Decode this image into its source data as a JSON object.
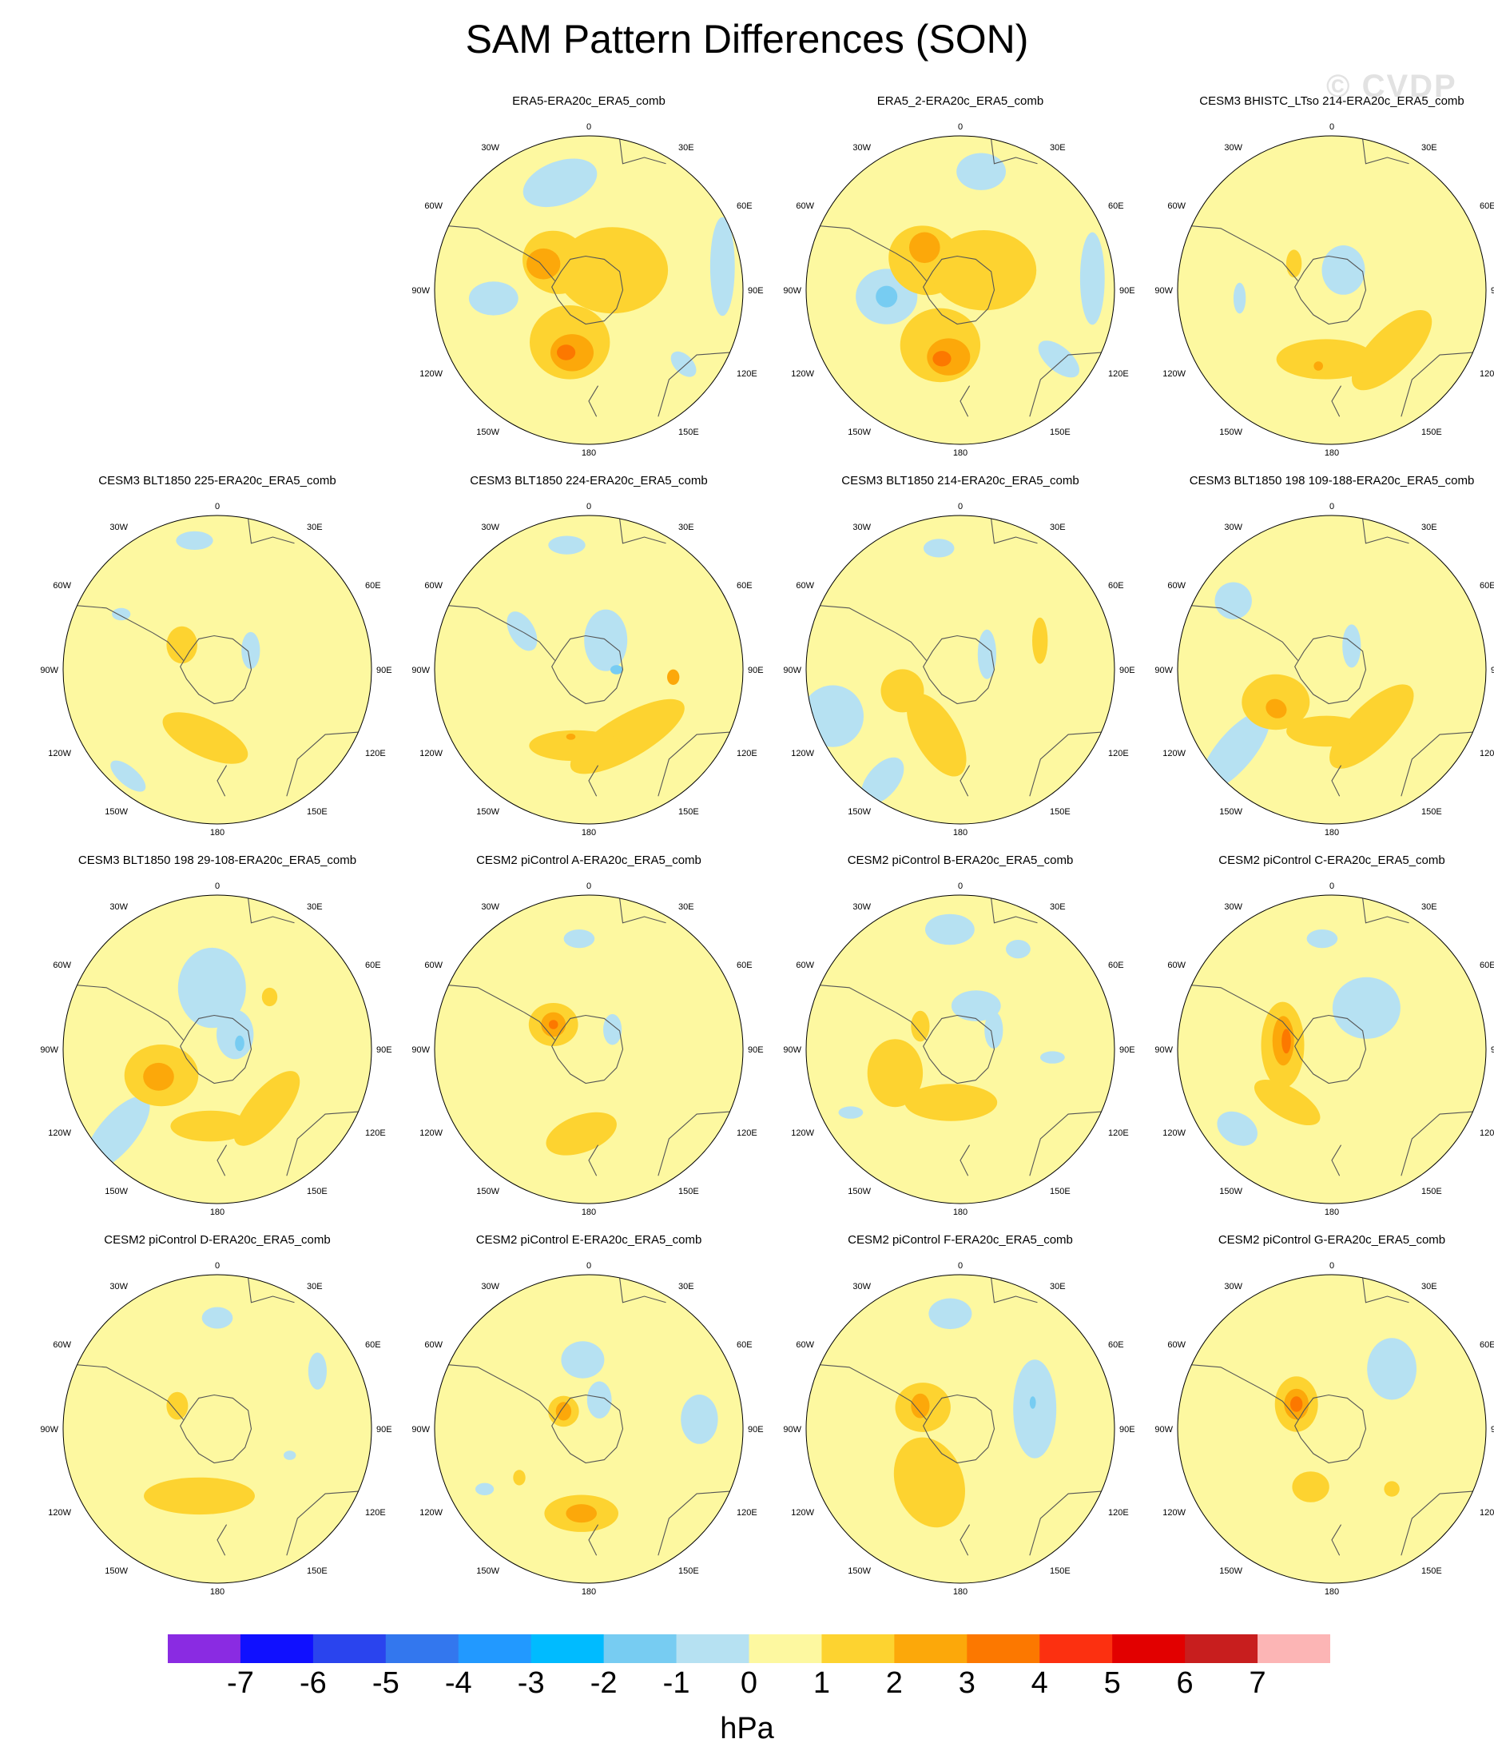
{
  "title": "SAM Pattern Differences (SON)",
  "watermark": "© CVDP",
  "units": "hPa",
  "colorbar": {
    "colors": [
      "#8a2be2",
      "#1010ff",
      "#2a44ee",
      "#3377ee",
      "#2299ff",
      "#00bbff",
      "#77ccf2",
      "#b6e1f2",
      "#fdf8a0",
      "#fdd330",
      "#fca80a",
      "#fc7800",
      "#fc3010",
      "#e20000",
      "#c81e1e",
      "#fcb5b5"
    ],
    "labels": [
      "-7",
      "-6",
      "-5",
      "-4",
      "-3",
      "-2",
      "-1",
      "0",
      "1",
      "2",
      "3",
      "4",
      "5",
      "6",
      "7"
    ]
  },
  "map_labels": {
    "top": "0",
    "ne30": "30E",
    "nw30": "30W",
    "e60": "60E",
    "w60": "60W",
    "e90": "90E",
    "w90": "90W",
    "e120": "120E",
    "w120": "120W",
    "e150": "150E",
    "w150": "150W",
    "bottom": "180"
  },
  "panels": [
    {
      "title": "",
      "empty": true,
      "blobs": []
    },
    {
      "title": "ERA5-ERA20c_ERA5_comb",
      "blobs": [
        {
          "level": "neg1",
          "ang": -15,
          "r": 0.72,
          "sx": 0.25,
          "sy": 0.14,
          "rot": -20
        },
        {
          "level": "neg1",
          "ang": -95,
          "r": 0.62,
          "sx": 0.16,
          "sy": 0.11,
          "rot": 0
        },
        {
          "level": "neg1",
          "ang": 80,
          "r": 0.88,
          "sx": 0.08,
          "sy": 0.32,
          "rot": 0
        },
        {
          "level": "neg1",
          "ang": 128,
          "r": 0.78,
          "sx": 0.1,
          "sy": 0.06,
          "rot": 45
        },
        {
          "level": "pos1",
          "ang": -50,
          "r": 0.28,
          "sx": 0.22,
          "sy": 0.2,
          "rot": 30
        },
        {
          "level": "pos1",
          "ang": -160,
          "r": 0.36,
          "sx": 0.26,
          "sy": 0.24,
          "rot": 0
        },
        {
          "level": "pos1",
          "ang": 50,
          "r": 0.2,
          "sx": 0.36,
          "sy": 0.28,
          "rot": 0
        },
        {
          "level": "pos2",
          "ang": -60,
          "r": 0.34,
          "sx": 0.11,
          "sy": 0.1,
          "rot": 0
        },
        {
          "level": "pos2",
          "ang": -165,
          "r": 0.42,
          "sx": 0.14,
          "sy": 0.12,
          "rot": 0
        },
        {
          "level": "pos3",
          "ang": -160,
          "r": 0.43,
          "sx": 0.06,
          "sy": 0.05,
          "rot": 0
        }
      ]
    },
    {
      "title": "ERA5_2-ERA20c_ERA5_comb",
      "blobs": [
        {
          "level": "neg1",
          "ang": 10,
          "r": 0.78,
          "sx": 0.16,
          "sy": 0.12,
          "rot": 0
        },
        {
          "level": "neg1",
          "ang": -95,
          "r": 0.48,
          "sx": 0.2,
          "sy": 0.18,
          "rot": 0
        },
        {
          "level": "neg1",
          "ang": 85,
          "r": 0.86,
          "sx": 0.08,
          "sy": 0.3,
          "rot": 0
        },
        {
          "level": "neg1",
          "ang": 125,
          "r": 0.78,
          "sx": 0.16,
          "sy": 0.08,
          "rot": 40
        },
        {
          "level": "neg2",
          "ang": -95,
          "r": 0.48,
          "sx": 0.07,
          "sy": 0.07,
          "rot": 0
        },
        {
          "level": "pos1",
          "ang": -50,
          "r": 0.3,
          "sx": 0.24,
          "sy": 0.22,
          "rot": 30
        },
        {
          "level": "pos1",
          "ang": -160,
          "r": 0.38,
          "sx": 0.26,
          "sy": 0.24,
          "rot": 0
        },
        {
          "level": "pos1",
          "ang": 50,
          "r": 0.2,
          "sx": 0.34,
          "sy": 0.26,
          "rot": 0
        },
        {
          "level": "pos2",
          "ang": -40,
          "r": 0.36,
          "sx": 0.1,
          "sy": 0.1,
          "rot": 0
        },
        {
          "level": "pos2",
          "ang": -170,
          "r": 0.44,
          "sx": 0.14,
          "sy": 0.12,
          "rot": 0
        },
        {
          "level": "pos3",
          "ang": -165,
          "r": 0.46,
          "sx": 0.06,
          "sy": 0.05,
          "rot": 0
        }
      ]
    },
    {
      "title": "CESM3 BHISTC_LTso 214-ERA20c_ERA5_comb",
      "blobs": [
        {
          "level": "neg1",
          "ang": 30,
          "r": 0.15,
          "sx": 0.14,
          "sy": 0.16,
          "rot": 0
        },
        {
          "level": "neg1",
          "ang": -95,
          "r": 0.6,
          "sx": 0.04,
          "sy": 0.1,
          "rot": 0
        },
        {
          "level": "pos1",
          "ang": 135,
          "r": 0.55,
          "sx": 0.34,
          "sy": 0.14,
          "rot": -45
        },
        {
          "level": "pos1",
          "ang": -175,
          "r": 0.45,
          "sx": 0.32,
          "sy": 0.13,
          "rot": 0
        },
        {
          "level": "pos1",
          "ang": -55,
          "r": 0.3,
          "sx": 0.05,
          "sy": 0.09,
          "rot": 0
        },
        {
          "level": "pos2",
          "ang": -170,
          "r": 0.5,
          "sx": 0.03,
          "sy": 0.03,
          "rot": 0
        }
      ]
    },
    {
      "title": "CESM3 BLT1850 225-ERA20c_ERA5_comb",
      "blobs": [
        {
          "level": "neg1",
          "ang": -10,
          "r": 0.85,
          "sx": 0.12,
          "sy": 0.06,
          "rot": 0
        },
        {
          "level": "neg1",
          "ang": 60,
          "r": 0.25,
          "sx": 0.06,
          "sy": 0.12,
          "rot": 0
        },
        {
          "level": "neg1",
          "ang": -140,
          "r": 0.9,
          "sx": 0.14,
          "sy": 0.06,
          "rot": 40
        },
        {
          "level": "neg1",
          "ang": -60,
          "r": 0.72,
          "sx": 0.06,
          "sy": 0.04,
          "rot": 0
        },
        {
          "level": "pos1",
          "ang": -55,
          "r": 0.28,
          "sx": 0.1,
          "sy": 0.12,
          "rot": 0
        },
        {
          "level": "pos1",
          "ang": -170,
          "r": 0.45,
          "sx": 0.3,
          "sy": 0.12,
          "rot": 25
        }
      ]
    },
    {
      "title": "CESM3 BLT1850 224-ERA20c_ERA5_comb",
      "blobs": [
        {
          "level": "neg1",
          "ang": -10,
          "r": 0.82,
          "sx": 0.12,
          "sy": 0.06,
          "rot": 0
        },
        {
          "level": "neg1",
          "ang": 30,
          "r": 0.22,
          "sx": 0.14,
          "sy": 0.2,
          "rot": 0
        },
        {
          "level": "neg1",
          "ang": -60,
          "r": 0.5,
          "sx": 0.08,
          "sy": 0.14,
          "rot": -30
        },
        {
          "level": "neg2",
          "ang": 90,
          "r": 0.18,
          "sx": 0.04,
          "sy": 0.03,
          "rot": 0
        },
        {
          "level": "pos1",
          "ang": 150,
          "r": 0.5,
          "sx": 0.42,
          "sy": 0.14,
          "rot": -30
        },
        {
          "level": "pos1",
          "ang": -170,
          "r": 0.5,
          "sx": 0.3,
          "sy": 0.1,
          "rot": 0
        },
        {
          "level": "pos2",
          "ang": 95,
          "r": 0.55,
          "sx": 0.04,
          "sy": 0.05,
          "rot": 0
        },
        {
          "level": "pos2",
          "ang": -165,
          "r": 0.45,
          "sx": 0.03,
          "sy": 0.02,
          "rot": 0
        }
      ]
    },
    {
      "title": "CESM3 BLT1850 214-ERA20c_ERA5_comb",
      "blobs": [
        {
          "level": "neg1",
          "ang": -10,
          "r": 0.8,
          "sx": 0.1,
          "sy": 0.06,
          "rot": 0
        },
        {
          "level": "neg1",
          "ang": 60,
          "r": 0.2,
          "sx": 0.06,
          "sy": 0.16,
          "rot": 0
        },
        {
          "level": "neg1",
          "ang": -110,
          "r": 0.88,
          "sx": 0.2,
          "sy": 0.2,
          "rot": 0
        },
        {
          "level": "neg1",
          "ang": -145,
          "r": 0.88,
          "sx": 0.1,
          "sy": 0.18,
          "rot": 40
        },
        {
          "level": "pos1",
          "ang": -110,
          "r": 0.4,
          "sx": 0.14,
          "sy": 0.14,
          "rot": 0
        },
        {
          "level": "pos1",
          "ang": -160,
          "r": 0.45,
          "sx": 0.14,
          "sy": 0.3,
          "rot": -30
        },
        {
          "level": "pos1",
          "ang": 70,
          "r": 0.55,
          "sx": 0.05,
          "sy": 0.15,
          "rot": 0
        }
      ]
    },
    {
      "title": "CESM3 BLT1850 198 109-188-ERA20c_ERA5_comb",
      "blobs": [
        {
          "level": "neg1",
          "ang": -55,
          "r": 0.78,
          "sx": 0.12,
          "sy": 0.12,
          "rot": 0
        },
        {
          "level": "neg1",
          "ang": -130,
          "r": 0.82,
          "sx": 0.12,
          "sy": 0.32,
          "rot": 40
        },
        {
          "level": "neg1",
          "ang": 40,
          "r": 0.2,
          "sx": 0.06,
          "sy": 0.14,
          "rot": 0
        },
        {
          "level": "pos1",
          "ang": -120,
          "r": 0.42,
          "sx": 0.22,
          "sy": 0.18,
          "rot": 0
        },
        {
          "level": "pos1",
          "ang": 145,
          "r": 0.45,
          "sx": 0.36,
          "sy": 0.14,
          "rot": -45
        },
        {
          "level": "pos1",
          "ang": -175,
          "r": 0.4,
          "sx": 0.26,
          "sy": 0.1,
          "rot": 0
        },
        {
          "level": "pos2",
          "ang": -125,
          "r": 0.44,
          "sx": 0.07,
          "sy": 0.06,
          "rot": 30
        }
      ]
    },
    {
      "title": "CESM3 BLT1850 198 29-108-ERA20c_ERA5_comb",
      "blobs": [
        {
          "level": "neg1",
          "ang": -5,
          "r": 0.4,
          "sx": 0.22,
          "sy": 0.26,
          "rot": 0
        },
        {
          "level": "neg1",
          "ang": 50,
          "r": 0.15,
          "sx": 0.12,
          "sy": 0.16,
          "rot": 0
        },
        {
          "level": "neg1",
          "ang": -130,
          "r": 0.85,
          "sx": 0.12,
          "sy": 0.3,
          "rot": 40
        },
        {
          "level": "neg2",
          "ang": 75,
          "r": 0.15,
          "sx": 0.03,
          "sy": 0.05,
          "rot": 0
        },
        {
          "level": "pos1",
          "ang": -115,
          "r": 0.4,
          "sx": 0.24,
          "sy": 0.2,
          "rot": 0
        },
        {
          "level": "pos1",
          "ang": 140,
          "r": 0.5,
          "sx": 0.3,
          "sy": 0.12,
          "rot": -50
        },
        {
          "level": "pos1",
          "ang": -175,
          "r": 0.5,
          "sx": 0.26,
          "sy": 0.1,
          "rot": 0
        },
        {
          "level": "pos1",
          "ang": 45,
          "r": 0.48,
          "sx": 0.05,
          "sy": 0.06,
          "rot": 0
        },
        {
          "level": "pos2",
          "ang": -115,
          "r": 0.42,
          "sx": 0.1,
          "sy": 0.09,
          "rot": 0
        }
      ]
    },
    {
      "title": "CESM2 piControl A-ERA20c_ERA5_comb",
      "blobs": [
        {
          "level": "neg1",
          "ang": -5,
          "r": 0.72,
          "sx": 0.1,
          "sy": 0.06,
          "rot": 0
        },
        {
          "level": "neg1",
          "ang": 50,
          "r": 0.2,
          "sx": 0.06,
          "sy": 0.1,
          "rot": 0
        },
        {
          "level": "pos1",
          "ang": -55,
          "r": 0.28,
          "sx": 0.16,
          "sy": 0.14,
          "rot": 0
        },
        {
          "level": "pos1",
          "ang": -175,
          "r": 0.55,
          "sx": 0.24,
          "sy": 0.12,
          "rot": -20
        },
        {
          "level": "pos2",
          "ang": -55,
          "r": 0.28,
          "sx": 0.08,
          "sy": 0.08,
          "rot": 0
        },
        {
          "level": "pos3",
          "ang": -55,
          "r": 0.28,
          "sx": 0.03,
          "sy": 0.03,
          "rot": 0
        }
      ]
    },
    {
      "title": "CESM2 piControl B-ERA20c_ERA5_comb",
      "blobs": [
        {
          "level": "neg1",
          "ang": -5,
          "r": 0.78,
          "sx": 0.16,
          "sy": 0.1,
          "rot": 0
        },
        {
          "level": "neg1",
          "ang": 30,
          "r": 0.75,
          "sx": 0.08,
          "sy": 0.06,
          "rot": 0
        },
        {
          "level": "neg1",
          "ang": 20,
          "r": 0.3,
          "sx": 0.16,
          "sy": 0.1,
          "rot": 0
        },
        {
          "level": "neg1",
          "ang": 60,
          "r": 0.25,
          "sx": 0.06,
          "sy": 0.12,
          "rot": 0
        },
        {
          "level": "neg1",
          "ang": -120,
          "r": 0.82,
          "sx": 0.08,
          "sy": 0.04,
          "rot": 0
        },
        {
          "level": "neg1",
          "ang": 95,
          "r": 0.6,
          "sx": 0.08,
          "sy": 0.04,
          "rot": 0
        },
        {
          "level": "pos1",
          "ang": -110,
          "r": 0.45,
          "sx": 0.18,
          "sy": 0.22,
          "rot": 0
        },
        {
          "level": "pos1",
          "ang": -170,
          "r": 0.35,
          "sx": 0.3,
          "sy": 0.12,
          "rot": 0
        },
        {
          "level": "pos1",
          "ang": -60,
          "r": 0.3,
          "sx": 0.06,
          "sy": 0.1,
          "rot": 0
        }
      ]
    },
    {
      "title": "CESM2 piControl C-ERA20c_ERA5_comb",
      "blobs": [
        {
          "level": "neg1",
          "ang": -5,
          "r": 0.72,
          "sx": 0.1,
          "sy": 0.06,
          "rot": 0
        },
        {
          "level": "neg1",
          "ang": 40,
          "r": 0.35,
          "sx": 0.22,
          "sy": 0.2,
          "rot": 0
        },
        {
          "level": "neg1",
          "ang": -130,
          "r": 0.8,
          "sx": 0.14,
          "sy": 0.1,
          "rot": 30
        },
        {
          "level": "pos1",
          "ang": -85,
          "r": 0.32,
          "sx": 0.14,
          "sy": 0.28,
          "rot": 0
        },
        {
          "level": "pos1",
          "ang": -140,
          "r": 0.45,
          "sx": 0.24,
          "sy": 0.1,
          "rot": 30
        },
        {
          "level": "pos2",
          "ang": -80,
          "r": 0.32,
          "sx": 0.07,
          "sy": 0.16,
          "rot": 0
        },
        {
          "level": "pos3",
          "ang": -80,
          "r": 0.3,
          "sx": 0.03,
          "sy": 0.08,
          "rot": 0
        }
      ]
    },
    {
      "title": "CESM2 piControl D-ERA20c_ERA5_comb",
      "blobs": [
        {
          "level": "neg1",
          "ang": 0,
          "r": 0.72,
          "sx": 0.1,
          "sy": 0.07,
          "rot": 0
        },
        {
          "level": "neg1",
          "ang": 60,
          "r": 0.75,
          "sx": 0.06,
          "sy": 0.12,
          "rot": 0
        },
        {
          "level": "neg1",
          "ang": 110,
          "r": 0.5,
          "sx": 0.04,
          "sy": 0.03,
          "rot": 0
        },
        {
          "level": "pos1",
          "ang": -60,
          "r": 0.3,
          "sx": 0.07,
          "sy": 0.09,
          "rot": 0
        },
        {
          "level": "pos1",
          "ang": -165,
          "r": 0.45,
          "sx": 0.36,
          "sy": 0.12,
          "rot": 0
        }
      ]
    },
    {
      "title": "CESM2 piControl E-ERA20c_ERA5_comb",
      "blobs": [
        {
          "level": "neg1",
          "ang": -5,
          "r": 0.45,
          "sx": 0.14,
          "sy": 0.12,
          "rot": 0
        },
        {
          "level": "neg1",
          "ang": 20,
          "r": 0.2,
          "sx": 0.08,
          "sy": 0.12,
          "rot": 0
        },
        {
          "level": "neg1",
          "ang": 85,
          "r": 0.72,
          "sx": 0.12,
          "sy": 0.16,
          "rot": 0
        },
        {
          "level": "neg1",
          "ang": -120,
          "r": 0.78,
          "sx": 0.06,
          "sy": 0.04,
          "rot": 0
        },
        {
          "level": "pos1",
          "ang": -55,
          "r": 0.2,
          "sx": 0.1,
          "sy": 0.1,
          "rot": 0
        },
        {
          "level": "pos1",
          "ang": -175,
          "r": 0.55,
          "sx": 0.24,
          "sy": 0.12,
          "rot": 0
        },
        {
          "level": "pos1",
          "ang": -125,
          "r": 0.55,
          "sx": 0.04,
          "sy": 0.05,
          "rot": 0
        },
        {
          "level": "pos2",
          "ang": -55,
          "r": 0.2,
          "sx": 0.05,
          "sy": 0.06,
          "rot": 0
        },
        {
          "level": "pos2",
          "ang": -175,
          "r": 0.55,
          "sx": 0.1,
          "sy": 0.06,
          "rot": 0
        }
      ]
    },
    {
      "title": "CESM2 piControl F-ERA20c_ERA5_comb",
      "blobs": [
        {
          "level": "neg1",
          "ang": -5,
          "r": 0.75,
          "sx": 0.14,
          "sy": 0.1,
          "rot": 0
        },
        {
          "level": "neg1",
          "ang": 75,
          "r": 0.5,
          "sx": 0.14,
          "sy": 0.32,
          "rot": 0
        },
        {
          "level": "neg2",
          "ang": 70,
          "r": 0.5,
          "sx": 0.02,
          "sy": 0.04,
          "rot": 0
        },
        {
          "level": "pos1",
          "ang": -60,
          "r": 0.28,
          "sx": 0.18,
          "sy": 0.16,
          "rot": 0
        },
        {
          "level": "pos1",
          "ang": -150,
          "r": 0.4,
          "sx": 0.22,
          "sy": 0.3,
          "rot": -20
        },
        {
          "level": "pos2",
          "ang": -60,
          "r": 0.3,
          "sx": 0.06,
          "sy": 0.08,
          "rot": 0
        }
      ]
    },
    {
      "title": "CESM2 piControl G-ERA20c_ERA5_comb",
      "blobs": [
        {
          "level": "neg1",
          "ang": 45,
          "r": 0.55,
          "sx": 0.16,
          "sy": 0.2,
          "rot": 0
        },
        {
          "level": "pos1",
          "ang": -55,
          "r": 0.28,
          "sx": 0.14,
          "sy": 0.18,
          "rot": 0
        },
        {
          "level": "pos1",
          "ang": -160,
          "r": 0.4,
          "sx": 0.12,
          "sy": 0.1,
          "rot": 0
        },
        {
          "level": "pos1",
          "ang": 135,
          "r": 0.55,
          "sx": 0.05,
          "sy": 0.05,
          "rot": 0
        },
        {
          "level": "pos2",
          "ang": -55,
          "r": 0.28,
          "sx": 0.08,
          "sy": 0.1,
          "rot": 0
        },
        {
          "level": "pos3",
          "ang": -55,
          "r": 0.28,
          "sx": 0.04,
          "sy": 0.05,
          "rot": 0
        }
      ]
    }
  ]
}
